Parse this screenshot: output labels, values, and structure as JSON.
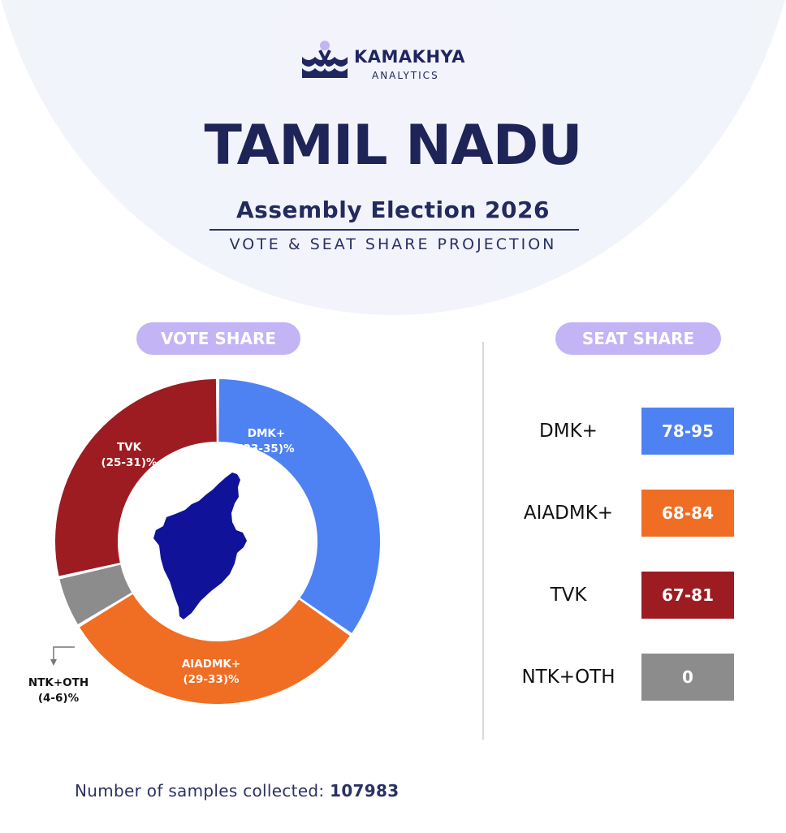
{
  "brand": {
    "name": "KAMAKHYA",
    "sub": "ANALYTICS"
  },
  "header": {
    "title": "TAMIL NADU",
    "subtitle": "Assembly Election 2026",
    "tagline": "VOTE & SEAT SHARE PROJECTION"
  },
  "sections": {
    "vote": "VOTE SHARE",
    "seat": "SEAT SHARE"
  },
  "colors": {
    "dmk": "#4e82f3",
    "aiadmk": "#f06d24",
    "tvk": "#9c1c22",
    "ntk": "#8c8c8c",
    "map": "#10139a",
    "pill": "#c3b4f6"
  },
  "chart_data": [
    {
      "type": "pie",
      "variant": "donut",
      "slices": [
        {
          "name": "DMK+",
          "range": "(33-35)%",
          "min": 33,
          "max": 35,
          "value": 34,
          "color": "#4e82f3"
        },
        {
          "name": "AIADMK+",
          "range": "(29-33)%",
          "min": 29,
          "max": 33,
          "value": 31,
          "color": "#f06d24"
        },
        {
          "name": "NTK+OTH",
          "range": "(4-6)%",
          "min": 4,
          "max": 6,
          "value": 5,
          "color": "#8c8c8c"
        },
        {
          "name": "TVK",
          "range": "(25-31)%",
          "min": 25,
          "max": 31,
          "value": 28,
          "color": "#9c1c22"
        }
      ]
    },
    {
      "type": "table",
      "rows": [
        {
          "name": "DMK+",
          "seats": "78-95",
          "min": 78,
          "max": 95,
          "color": "#4e82f3"
        },
        {
          "name": "AIADMK+",
          "seats": "68-84",
          "min": 68,
          "max": 84,
          "color": "#f06d24"
        },
        {
          "name": "TVK",
          "seats": "67-81",
          "min": 67,
          "max": 81,
          "color": "#9c1c22"
        },
        {
          "name": "NTK+OTH",
          "seats": "0",
          "min": 0,
          "max": 0,
          "color": "#8c8c8c"
        }
      ]
    }
  ],
  "footer": {
    "label": "Number of samples collected:",
    "value": "107983"
  }
}
